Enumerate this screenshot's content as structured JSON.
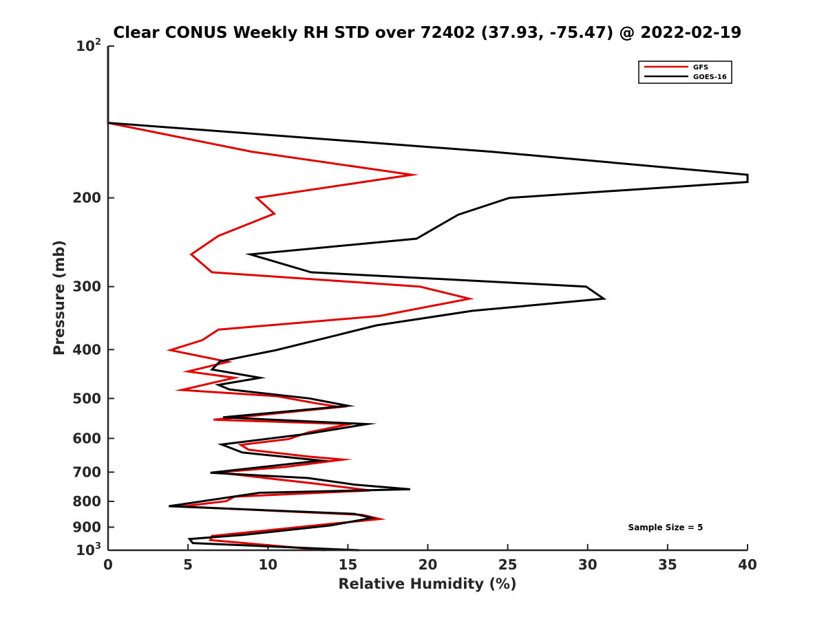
{
  "chart_data": {
    "type": "line",
    "title": "Clear CONUS Weekly RH STD over 72402 (37.93, -75.47) @ 2022-02-19",
    "xlabel": "Relative Humidity (%)",
    "ylabel": "Pressure (mb)",
    "xlim": [
      0,
      40
    ],
    "ylim": [
      100,
      1000
    ],
    "yscale": "log",
    "yreversed": true,
    "x_ticks": [
      0,
      5,
      10,
      15,
      20,
      25,
      30,
      35,
      40
    ],
    "x_tick_labels": [
      "0",
      "5",
      "10",
      "15",
      "20",
      "25",
      "30",
      "35",
      "40"
    ],
    "y_ticks": [
      100,
      200,
      300,
      400,
      500,
      600,
      700,
      800,
      900,
      1000
    ],
    "y_tick_labels": [
      {
        "base": "10",
        "sup": "2"
      },
      {
        "base": "200",
        "sup": ""
      },
      {
        "base": "300",
        "sup": ""
      },
      {
        "base": "400",
        "sup": ""
      },
      {
        "base": "500",
        "sup": ""
      },
      {
        "base": "600",
        "sup": ""
      },
      {
        "base": "700",
        "sup": ""
      },
      {
        "base": "800",
        "sup": ""
      },
      {
        "base": "900",
        "sup": ""
      },
      {
        "base": "10",
        "sup": "3"
      }
    ],
    "legend_position": "top-right",
    "annotation": "Sample Size = 5",
    "series": [
      {
        "name": "GFS",
        "color": "#e00000",
        "points": [
          [
            0,
            100
          ],
          [
            0,
            142
          ],
          [
            9.0,
            162
          ],
          [
            19.0,
            180
          ],
          [
            9.3,
            200
          ],
          [
            10.4,
            215
          ],
          [
            6.9,
            238
          ],
          [
            5.2,
            259
          ],
          [
            6.5,
            281
          ],
          [
            19.5,
            300
          ],
          [
            22.6,
            317
          ],
          [
            17.0,
            343
          ],
          [
            6.9,
            365
          ],
          [
            5.9,
            383
          ],
          [
            3.9,
            401
          ],
          [
            7.5,
            423
          ],
          [
            5.0,
            442
          ],
          [
            7.9,
            455
          ],
          [
            4.6,
            481
          ],
          [
            10.6,
            495
          ],
          [
            13.0,
            511
          ],
          [
            14.5,
            520
          ],
          [
            6.6,
            551
          ],
          [
            15.1,
            562
          ],
          [
            12.5,
            584
          ],
          [
            11.3,
            602
          ],
          [
            8.3,
            618
          ],
          [
            8.8,
            632
          ],
          [
            12.5,
            652
          ],
          [
            14.7,
            661
          ],
          [
            11.0,
            684
          ],
          [
            6.8,
            701
          ],
          [
            13.0,
            738
          ],
          [
            16.4,
            761
          ],
          [
            7.9,
            783
          ],
          [
            7.4,
            799
          ],
          [
            4.6,
            819
          ],
          [
            15.9,
            851
          ],
          [
            17.0,
            867
          ],
          [
            14.0,
            886
          ],
          [
            6.5,
            937
          ],
          [
            6.4,
            955
          ],
          [
            13.6,
            1000
          ]
        ]
      },
      {
        "name": "GOES-16",
        "color": "#000000",
        "points": [
          [
            0,
            100
          ],
          [
            0,
            142
          ],
          [
            24.0,
            162
          ],
          [
            40,
            180
          ],
          [
            40,
            186
          ],
          [
            25.1,
            200
          ],
          [
            21.9,
            216
          ],
          [
            19.3,
            241
          ],
          [
            8.9,
            259
          ],
          [
            12.7,
            281
          ],
          [
            29.9,
            300
          ],
          [
            31.0,
            317
          ],
          [
            22.8,
            335
          ],
          [
            16.8,
            358
          ],
          [
            13.8,
            378
          ],
          [
            10.5,
            401
          ],
          [
            7.0,
            422
          ],
          [
            6.5,
            438
          ],
          [
            9.5,
            455
          ],
          [
            6.9,
            470
          ],
          [
            7.6,
            480
          ],
          [
            12.6,
            500
          ],
          [
            15.0,
            517
          ],
          [
            7.2,
            545
          ],
          [
            16.2,
            562
          ],
          [
            12.4,
            588
          ],
          [
            7.1,
            617
          ],
          [
            8.4,
            640
          ],
          [
            13.3,
            664
          ],
          [
            6.4,
            702
          ],
          [
            12.5,
            719
          ],
          [
            15.4,
            741
          ],
          [
            18.9,
            757
          ],
          [
            9.5,
            769
          ],
          [
            3.8,
            818
          ],
          [
            15.4,
            847
          ],
          [
            16.5,
            863
          ],
          [
            13.9,
            893
          ],
          [
            8.5,
            932
          ],
          [
            5.1,
            950
          ],
          [
            5.3,
            968
          ],
          [
            15.7,
            1000
          ]
        ]
      }
    ]
  }
}
